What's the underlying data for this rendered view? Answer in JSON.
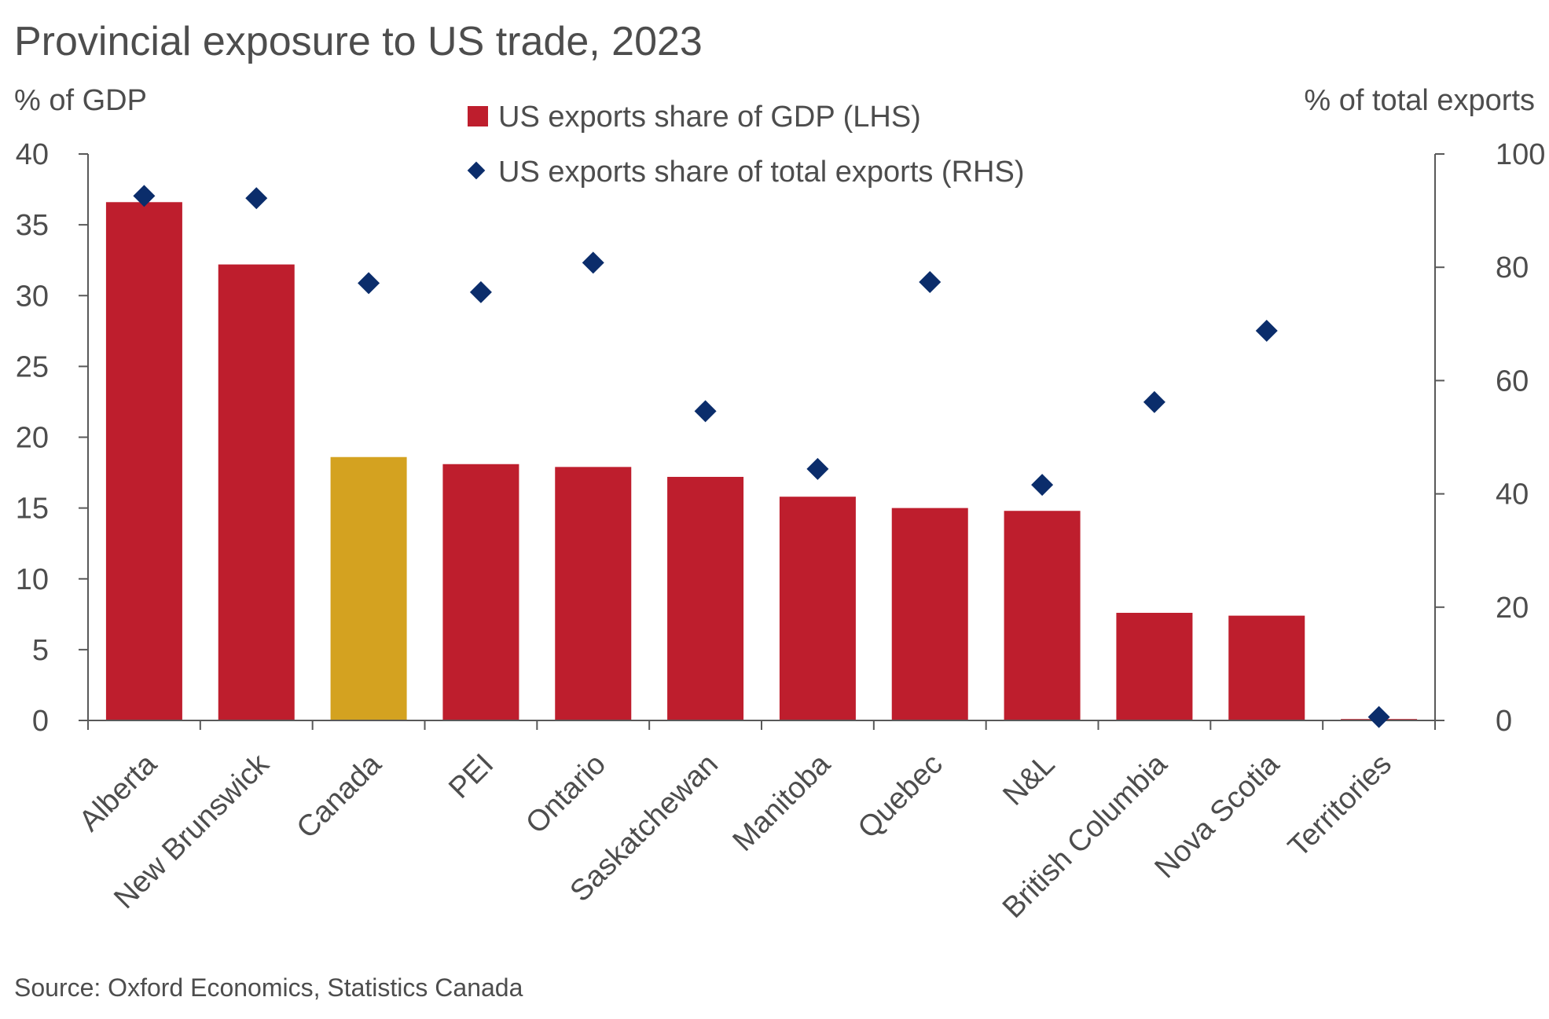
{
  "chart_data": {
    "type": "bar",
    "title": "Provincial exposure to US trade, 2023",
    "left_axis_label": "% of GDP",
    "right_axis_label": "% of total exports",
    "categories": [
      "Alberta",
      "New Brunswick",
      "Canada",
      "PEI",
      "Ontario",
      "Saskatchewan",
      "Manitoba",
      "Quebec",
      "N&L",
      "British Columbia",
      "Nova Scotia",
      "Territories"
    ],
    "series": [
      {
        "name": "US exports share of GDP (LHS)",
        "axis": "left",
        "mark": "bar",
        "color": "#be1e2d",
        "highlight": {
          "category": "Canada",
          "color": "#d4a220"
        },
        "values": [
          36.6,
          32.2,
          18.6,
          18.1,
          17.9,
          17.2,
          15.8,
          15.0,
          14.8,
          7.6,
          7.4,
          0.1
        ]
      },
      {
        "name": "US exports share of total exports (RHS)",
        "axis": "right",
        "mark": "diamond",
        "color": "#0b2d6b",
        "values": [
          92.6,
          92.2,
          77.2,
          75.6,
          80.8,
          54.6,
          44.4,
          77.4,
          41.6,
          56.2,
          68.8,
          0.6
        ]
      }
    ],
    "left_axis": {
      "min": 0,
      "max": 40,
      "ticks": [
        0,
        5,
        10,
        15,
        20,
        25,
        30,
        35,
        40
      ]
    },
    "right_axis": {
      "min": 0,
      "max": 100,
      "ticks": [
        0,
        20,
        40,
        60,
        80,
        100
      ]
    },
    "legend_position": "top-center",
    "grid": false,
    "source": "Source: Oxford Economics, Statistics Canada"
  }
}
